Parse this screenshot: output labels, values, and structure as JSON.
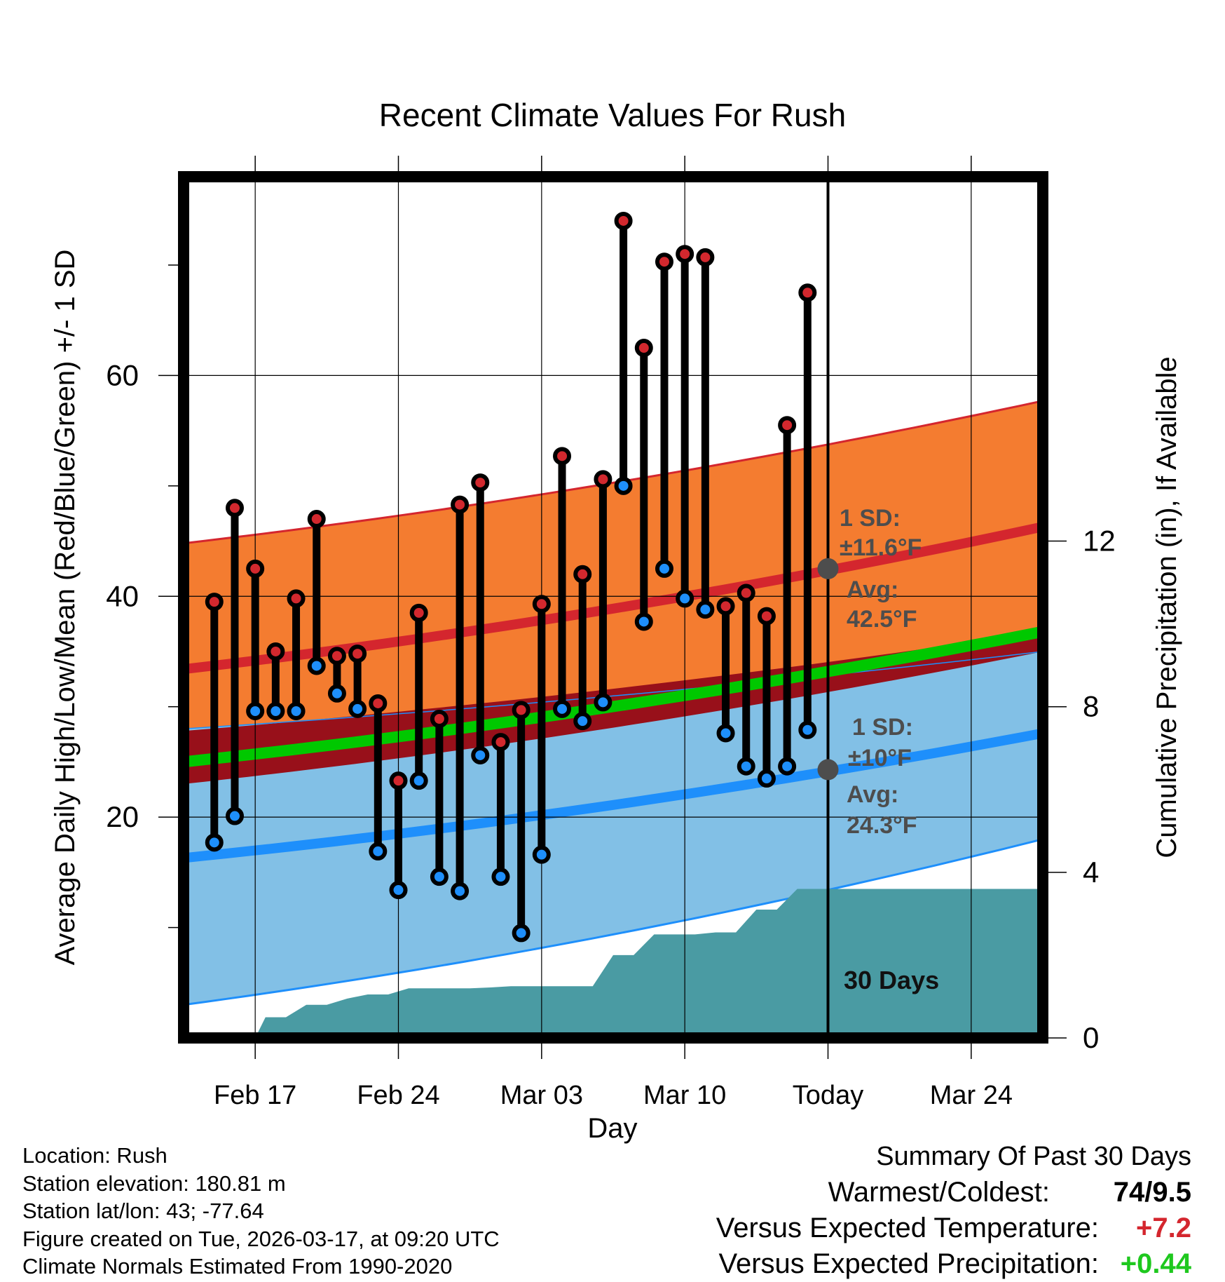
{
  "chart_data": {
    "type": "line",
    "title": "Recent Climate Values For Rush",
    "xlabel": "Day",
    "ylabel": "Average Daily High/Low/Mean (Red/Blue/Green) +/- 1 SD",
    "y2label": "Cumulative Precipitation (in), If Available",
    "xlim": [
      -1.5,
      40.5
    ],
    "ylim": [
      0,
      78
    ],
    "y2lim": [
      0,
      20.8
    ],
    "x_ticks": [
      {
        "x": 2,
        "label": "Feb 17"
      },
      {
        "x": 9,
        "label": "Feb 24"
      },
      {
        "x": 16,
        "label": "Mar 03"
      },
      {
        "x": 23,
        "label": "Mar 10"
      },
      {
        "x": 30,
        "label": "Today"
      },
      {
        "x": 37,
        "label": "Mar 24"
      }
    ],
    "y_ticks": [
      20,
      40,
      60
    ],
    "y_minor_ticks": [
      10,
      30,
      50,
      70
    ],
    "y2_ticks": [
      0,
      4,
      8,
      12
    ],
    "today_x": 30,
    "days": [
      0,
      1,
      2,
      3,
      4,
      5,
      6,
      7,
      8,
      9,
      10,
      11,
      12,
      13,
      14,
      15,
      16,
      17,
      18,
      19,
      20,
      21,
      22,
      23,
      24,
      25,
      26,
      27,
      28,
      29
    ],
    "highs": [
      39.5,
      48,
      42.5,
      35,
      39.8,
      47,
      34.6,
      34.8,
      30.3,
      23.3,
      38.5,
      28.9,
      48.3,
      50.3,
      26.8,
      29.7,
      39.3,
      52.7,
      42,
      50.6,
      74,
      62.5,
      70.3,
      71,
      70.7,
      39.1,
      40.3,
      38.2,
      55.5,
      67.5
    ],
    "lows": [
      17.7,
      20.1,
      29.6,
      29.6,
      29.6,
      33.7,
      31.2,
      29.8,
      16.9,
      13.4,
      23.3,
      14.6,
      13.3,
      25.6,
      14.6,
      9.5,
      16.6,
      29.8,
      28.7,
      30.4,
      50,
      37.7,
      42.5,
      39.8,
      38.8,
      27.6,
      24.6,
      23.5,
      24.6,
      27.9
    ],
    "normals": {
      "x": [
        -1.5,
        40.5
      ],
      "high_avg": [
        33.4,
        46.3
      ],
      "high_plus_1sd": [
        44.8,
        57.7
      ],
      "high_minus_1sd": [
        28.0,
        35.0
      ],
      "low_avg": [
        16.3,
        27.6
      ],
      "low_plus_1sd": [
        28.0,
        35.0
      ],
      "low_minus_1sd": [
        3.0,
        18.0
      ],
      "mean_avg": [
        25.0,
        36.8
      ],
      "maroon_upper": [
        27.8,
        36.8
      ],
      "maroon_lower": [
        23.0,
        35.0
      ],
      "green_halfwidth": 0.7
    },
    "precip_cumulative": {
      "x": [
        -1.5,
        0,
        1,
        2,
        2.5,
        3.5,
        4.5,
        5.5,
        6.5,
        7.5,
        8.5,
        9.5,
        10.5,
        11.5,
        12.5,
        13.5,
        14.5,
        15.5,
        16.5,
        17.5,
        18.5,
        19.5,
        20.5,
        21.5,
        22.5,
        23.5,
        24.5,
        25.5,
        26.5,
        27.5,
        28.5,
        29.5,
        30.5,
        40.5
      ],
      "y": [
        0,
        0,
        0,
        0,
        0.5,
        0.5,
        0.8,
        0.8,
        0.95,
        1.05,
        1.05,
        1.2,
        1.2,
        1.2,
        1.2,
        1.22,
        1.25,
        1.25,
        1.25,
        1.25,
        1.25,
        2.0,
        2.0,
        2.5,
        2.5,
        2.5,
        2.55,
        2.55,
        3.1,
        3.1,
        3.6,
        3.6,
        3.6,
        3.6
      ],
      "days_label": "30 Days"
    },
    "annotations": {
      "high": {
        "sd": "1 SD:",
        "sd_val": "±11.6°F",
        "avg": "Avg:",
        "avg_val": "42.5°F",
        "avg_value": 42.5
      },
      "low": {
        "sd": "1 SD:",
        "sd_val": "±10°F",
        "avg": "Avg:",
        "avg_val": "24.3°F",
        "avg_value": 24.3
      }
    },
    "colors": {
      "orange_band": "#f47c30",
      "red_line": "#d4262e",
      "blue_band": "#82c0e6",
      "blue_line": "#1e8ffb",
      "green_line": "#00c800",
      "maroon_band": "#98101a",
      "precip_fill": "#4a9ba3",
      "high_dot": "#d2282e",
      "low_dot": "#1e8ffb",
      "marker_gray": "#4d4d4d"
    }
  },
  "footer": {
    "location": "Location: Rush",
    "elevation": "Station elevation: 180.81 m",
    "latlon": "Station lat/lon: 43; -77.64",
    "created": "Figure created on Tue, 2026-03-17, at 09:20 UTC",
    "normals": "Climate Normals Estimated From 1990-2020"
  },
  "summary": {
    "title": "Summary Of Past 30 Days",
    "warmest_label": "Warmest/Coldest:",
    "warmest_value": "74/9.5",
    "temp_label": "Versus Expected Temperature:",
    "temp_value": "+7.2",
    "temp_color": "#d4262e",
    "precip_label": "Versus Expected Precipitation:",
    "precip_value": "+0.44",
    "precip_color": "#1ec81e"
  }
}
